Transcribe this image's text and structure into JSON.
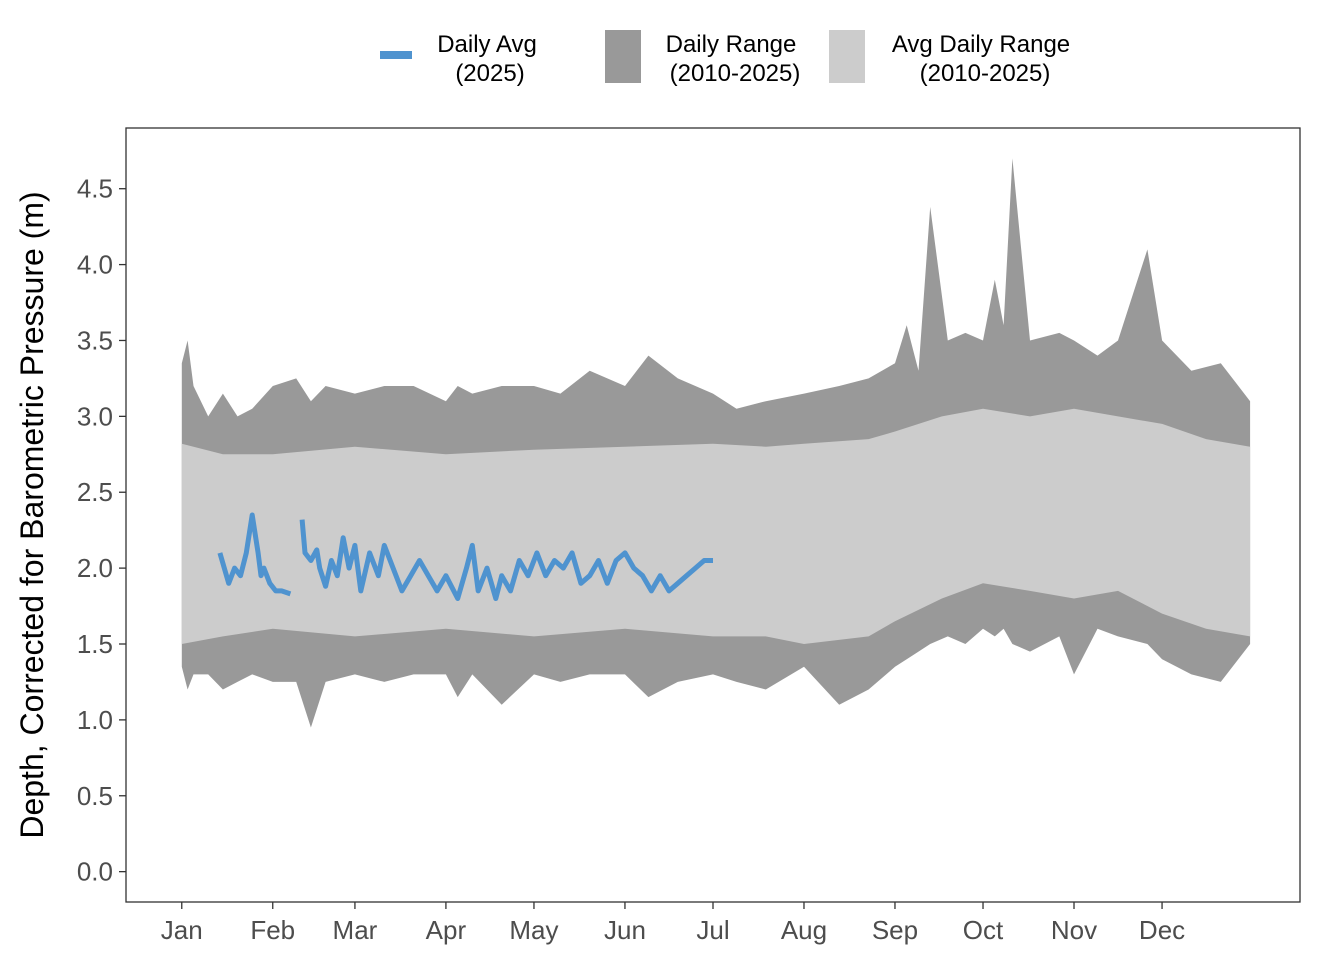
{
  "chart_data": {
    "type": "area",
    "title": "",
    "xlabel": "",
    "ylabel": "Depth, Corrected for Barometric Pressure (m)",
    "x_ticks": [
      "Jan",
      "Feb",
      "Mar",
      "Apr",
      "May",
      "Jun",
      "Jul",
      "Aug",
      "Sep",
      "Oct",
      "Nov",
      "Dec"
    ],
    "y_ticks": [
      "0.0",
      "0.5",
      "1.0",
      "1.5",
      "2.0",
      "2.5",
      "3.0",
      "3.5",
      "4.0",
      "4.5"
    ],
    "ylim": [
      -0.2,
      4.9
    ],
    "xlim_day_of_year": [
      -18,
      382
    ],
    "grid": false,
    "legend_position": "top",
    "legend": [
      {
        "label_line1": "Daily Avg",
        "label_line2": "(2025)",
        "color": "#4f93cf",
        "kind": "line"
      },
      {
        "label_line1": "Daily Range",
        "label_line2": "(2010-2025)",
        "color": "#999999",
        "kind": "fill"
      },
      {
        "label_line1": "Avg Daily Range",
        "label_line2": "(2010-2025)",
        "color": "#cccccc",
        "kind": "fill"
      }
    ],
    "series": [
      {
        "name": "Daily Range (2010-2025)",
        "color": "#999999",
        "day_of_year": [
          1,
          3,
          5,
          10,
          15,
          20,
          25,
          32,
          40,
          45,
          50,
          60,
          70,
          80,
          91,
          95,
          100,
          110,
          121,
          130,
          140,
          152,
          160,
          170,
          182,
          190,
          200,
          213,
          225,
          235,
          244,
          248,
          252,
          256,
          262,
          268,
          274,
          278,
          281,
          284,
          290,
          300,
          305,
          313,
          320,
          330,
          335,
          345,
          355,
          365
        ],
        "max": [
          3.35,
          3.5,
          3.2,
          3.0,
          3.15,
          3.0,
          3.05,
          3.2,
          3.25,
          3.1,
          3.2,
          3.15,
          3.2,
          3.2,
          3.1,
          3.2,
          3.15,
          3.2,
          3.2,
          3.15,
          3.3,
          3.2,
          3.4,
          3.25,
          3.15,
          3.05,
          3.1,
          3.15,
          3.2,
          3.25,
          3.35,
          3.6,
          3.3,
          4.38,
          3.5,
          3.55,
          3.5,
          3.9,
          3.6,
          4.7,
          3.5,
          3.55,
          3.5,
          3.4,
          3.5,
          4.1,
          3.5,
          3.3,
          3.35,
          3.1
        ],
        "min": [
          1.35,
          1.2,
          1.3,
          1.3,
          1.2,
          1.25,
          1.3,
          1.25,
          1.25,
          0.95,
          1.25,
          1.3,
          1.25,
          1.3,
          1.3,
          1.15,
          1.3,
          1.1,
          1.3,
          1.25,
          1.3,
          1.3,
          1.15,
          1.25,
          1.3,
          1.25,
          1.2,
          1.35,
          1.1,
          1.2,
          1.35,
          1.4,
          1.45,
          1.5,
          1.55,
          1.5,
          1.6,
          1.55,
          1.6,
          1.5,
          1.45,
          1.55,
          1.3,
          1.6,
          1.55,
          1.5,
          1.4,
          1.3,
          1.25,
          1.5
        ]
      },
      {
        "name": "Avg Daily Range (2010-2025)",
        "color": "#cccccc",
        "day_of_year": [
          1,
          15,
          32,
          60,
          91,
          121,
          152,
          182,
          200,
          213,
          235,
          244,
          260,
          274,
          290,
          305,
          320,
          335,
          350,
          365
        ],
        "max": [
          2.82,
          2.75,
          2.75,
          2.8,
          2.75,
          2.78,
          2.8,
          2.82,
          2.8,
          2.82,
          2.85,
          2.9,
          3.0,
          3.05,
          3.0,
          3.05,
          3.0,
          2.95,
          2.85,
          2.8
        ],
        "min": [
          1.5,
          1.55,
          1.6,
          1.55,
          1.6,
          1.55,
          1.6,
          1.55,
          1.55,
          1.5,
          1.55,
          1.65,
          1.8,
          1.9,
          1.85,
          1.8,
          1.85,
          1.7,
          1.6,
          1.55
        ]
      },
      {
        "name": "Daily Avg (2025)",
        "color": "#4f93cf",
        "segments": [
          {
            "day_of_year": [
              14,
              17,
              19,
              21,
              23,
              25,
              27,
              28,
              29,
              31,
              33,
              35,
              38
            ],
            "values": [
              2.1,
              1.9,
              2.0,
              1.95,
              2.1,
              2.35,
              2.1,
              1.95,
              2.0,
              1.9,
              1.85,
              1.85,
              1.83
            ]
          },
          {
            "day_of_year": [
              42,
              43,
              45,
              47,
              48,
              50,
              52,
              54,
              56,
              58,
              60,
              62,
              65,
              68,
              70,
              73,
              76,
              79,
              82,
              85,
              88,
              91,
              95,
              98,
              100,
              102,
              105,
              108,
              110,
              113,
              116,
              119,
              122,
              125,
              128,
              131,
              134,
              137,
              140,
              143,
              146,
              149,
              152,
              155,
              158,
              161,
              164,
              167,
              170,
              173,
              176,
              179,
              182
            ],
            "values": [
              2.32,
              2.1,
              2.05,
              2.12,
              2.0,
              1.88,
              2.05,
              1.95,
              2.2,
              2.0,
              2.15,
              1.85,
              2.1,
              1.95,
              2.15,
              2.0,
              1.85,
              1.95,
              2.05,
              1.95,
              1.85,
              1.95,
              1.8,
              2.0,
              2.15,
              1.85,
              2.0,
              1.8,
              1.95,
              1.85,
              2.05,
              1.95,
              2.1,
              1.95,
              2.05,
              2.0,
              2.1,
              1.9,
              1.95,
              2.05,
              1.9,
              2.05,
              2.1,
              2.0,
              1.95,
              1.85,
              1.95,
              1.85,
              1.9,
              1.95,
              2.0,
              2.05,
              2.05
            ]
          }
        ]
      }
    ]
  }
}
